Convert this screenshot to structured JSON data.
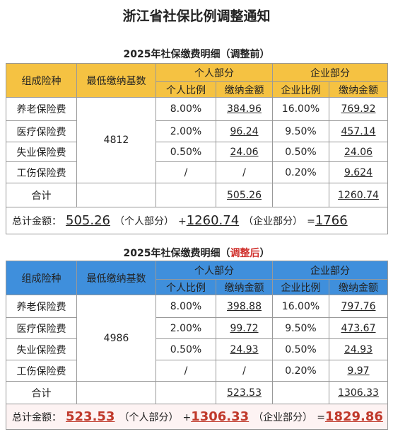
{
  "title": "浙江省社保比例调整通知",
  "tables": [
    {
      "title": [
        "2025年社保缴费明细（",
        "调整前",
        "）"
      ],
      "headers": {
        "type": "组成险种",
        "base": "最低缴纳基数",
        "personal": "个人部分",
        "company": "企业部分",
        "personal_rate": "个人比例",
        "personal_amount": "缴纳金额",
        "company_rate": "企业比例",
        "company_amount": "缴纳金额"
      },
      "base": "4812",
      "rows": [
        [
          "养老保险费",
          "8.00%",
          "384.96",
          "16.00%",
          "769.92"
        ],
        [
          "医疗保险费",
          "2.00%",
          "96.24",
          "9.50%",
          "457.14"
        ],
        [
          "失业保险费",
          "0.50%",
          "24.06",
          "0.50%",
          "24.06"
        ],
        [
          "工伤保险费",
          "/",
          "/",
          "0.20%",
          "9.624"
        ]
      ],
      "total": [
        "合计",
        "505.26",
        "1260.74"
      ],
      "summary": [
        "总计金额：",
        "505.26",
        "（个人部分）",
        "+",
        "1260.74",
        "（企业部分）",
        "=",
        "1766"
      ]
    },
    {
      "title": [
        "2025年社保缴费明细（",
        "调整后",
        "）"
      ],
      "headers": {
        "type": "组成险种",
        "base": "最低缴纳基数",
        "personal": "个人部分",
        "company": "企业部分",
        "personal_rate": "个人比例",
        "personal_amount": "缴纳金额",
        "company_rate": "企业比例",
        "company_amount": "缴纳金额"
      },
      "base": "4986",
      "rows": [
        [
          "养老保险费",
          "8.00%",
          "398.88",
          "16.00%",
          "797.76"
        ],
        [
          "医疗保险费",
          "2.00%",
          "99.72",
          "9.50%",
          "473.67"
        ],
        [
          "失业保险费",
          "0.50%",
          "24.93",
          "0.50%",
          "24.93"
        ],
        [
          "工伤保险费",
          "/",
          "/",
          "0.20%",
          "9.97"
        ]
      ],
      "total": [
        "合计",
        "523.53",
        "1306.33"
      ],
      "summary": [
        "总计金额：",
        "523.53",
        "（个人部分）",
        "+",
        "1306.33",
        "（企业部分）",
        "=",
        "1829.86"
      ]
    }
  ]
}
